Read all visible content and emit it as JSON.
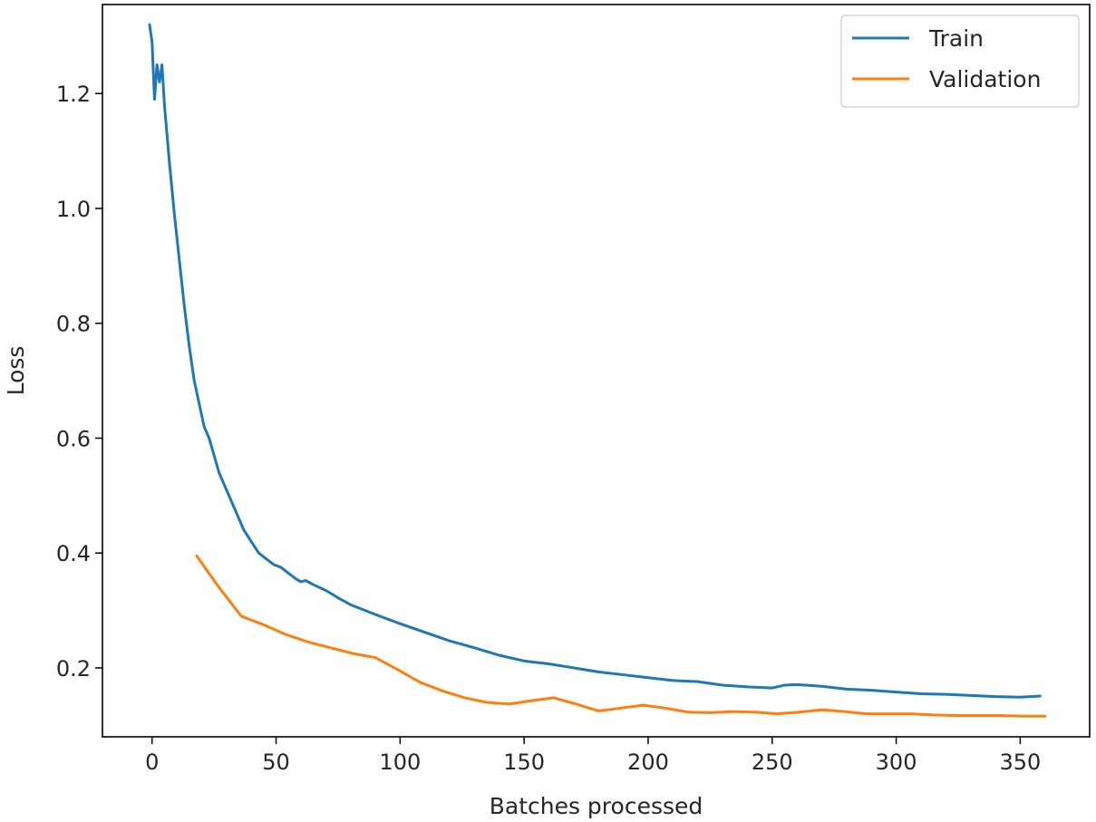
{
  "chart_data": {
    "type": "line",
    "title": "",
    "xlabel": "Batches processed",
    "ylabel": "Loss",
    "xlim": [
      -20,
      378
    ],
    "ylim": [
      0.08,
      1.355
    ],
    "xticks": [
      0,
      50,
      100,
      150,
      200,
      250,
      300,
      350
    ],
    "xtick_labels": [
      "0",
      "50",
      "100",
      "150",
      "200",
      "250",
      "300",
      "350"
    ],
    "yticks": [
      0.2,
      0.4,
      0.6,
      0.8,
      1.0,
      1.2
    ],
    "ytick_labels": [
      "0.2",
      "0.4",
      "0.6",
      "0.8",
      "1.0",
      "1.2"
    ],
    "grid": false,
    "legend": {
      "position": "top-right"
    },
    "series": [
      {
        "name": "Train",
        "color": "#1f77b4",
        "points": [
          [
            -1,
            1.32
          ],
          [
            0,
            1.29
          ],
          [
            1,
            1.19
          ],
          [
            2,
            1.25
          ],
          [
            3,
            1.22
          ],
          [
            4,
            1.25
          ],
          [
            5,
            1.18
          ],
          [
            7,
            1.08
          ],
          [
            9,
            0.99
          ],
          [
            11,
            0.91
          ],
          [
            13,
            0.83
          ],
          [
            15,
            0.76
          ],
          [
            17,
            0.7
          ],
          [
            19,
            0.66
          ],
          [
            21,
            0.62
          ],
          [
            23,
            0.6
          ],
          [
            25,
            0.57
          ],
          [
            27,
            0.54
          ],
          [
            29,
            0.52
          ],
          [
            31,
            0.5
          ],
          [
            33,
            0.48
          ],
          [
            35,
            0.46
          ],
          [
            37,
            0.44
          ],
          [
            40,
            0.42
          ],
          [
            43,
            0.4
          ],
          [
            46,
            0.39
          ],
          [
            49,
            0.38
          ],
          [
            52,
            0.375
          ],
          [
            55,
            0.365
          ],
          [
            58,
            0.355
          ],
          [
            60,
            0.35
          ],
          [
            62,
            0.352
          ],
          [
            65,
            0.345
          ],
          [
            70,
            0.335
          ],
          [
            75,
            0.322
          ],
          [
            80,
            0.31
          ],
          [
            90,
            0.293
          ],
          [
            100,
            0.277
          ],
          [
            110,
            0.262
          ],
          [
            120,
            0.247
          ],
          [
            130,
            0.235
          ],
          [
            140,
            0.222
          ],
          [
            150,
            0.212
          ],
          [
            160,
            0.207
          ],
          [
            170,
            0.2
          ],
          [
            180,
            0.193
          ],
          [
            190,
            0.188
          ],
          [
            200,
            0.183
          ],
          [
            210,
            0.178
          ],
          [
            220,
            0.176
          ],
          [
            230,
            0.17
          ],
          [
            240,
            0.167
          ],
          [
            250,
            0.165
          ],
          [
            255,
            0.17
          ],
          [
            260,
            0.171
          ],
          [
            270,
            0.168
          ],
          [
            280,
            0.163
          ],
          [
            290,
            0.161
          ],
          [
            300,
            0.158
          ],
          [
            310,
            0.155
          ],
          [
            320,
            0.154
          ],
          [
            330,
            0.152
          ],
          [
            340,
            0.15
          ],
          [
            350,
            0.149
          ],
          [
            358,
            0.151
          ]
        ]
      },
      {
        "name": "Validation",
        "color": "#ff7f0e",
        "points": [
          [
            18,
            0.395
          ],
          [
            27,
            0.34
          ],
          [
            36,
            0.29
          ],
          [
            45,
            0.275
          ],
          [
            54,
            0.258
          ],
          [
            63,
            0.245
          ],
          [
            72,
            0.235
          ],
          [
            81,
            0.225
          ],
          [
            90,
            0.218
          ],
          [
            99,
            0.197
          ],
          [
            108,
            0.175
          ],
          [
            117,
            0.16
          ],
          [
            126,
            0.148
          ],
          [
            135,
            0.14
          ],
          [
            144,
            0.137
          ],
          [
            153,
            0.143
          ],
          [
            162,
            0.148
          ],
          [
            171,
            0.137
          ],
          [
            180,
            0.125
          ],
          [
            189,
            0.13
          ],
          [
            198,
            0.135
          ],
          [
            207,
            0.13
          ],
          [
            216,
            0.123
          ],
          [
            225,
            0.122
          ],
          [
            234,
            0.124
          ],
          [
            243,
            0.123
          ],
          [
            252,
            0.12
          ],
          [
            261,
            0.123
          ],
          [
            270,
            0.127
          ],
          [
            279,
            0.124
          ],
          [
            288,
            0.12
          ],
          [
            297,
            0.12
          ],
          [
            306,
            0.12
          ],
          [
            315,
            0.118
          ],
          [
            324,
            0.117
          ],
          [
            333,
            0.117
          ],
          [
            342,
            0.117
          ],
          [
            351,
            0.116
          ],
          [
            360,
            0.116
          ]
        ]
      }
    ]
  }
}
